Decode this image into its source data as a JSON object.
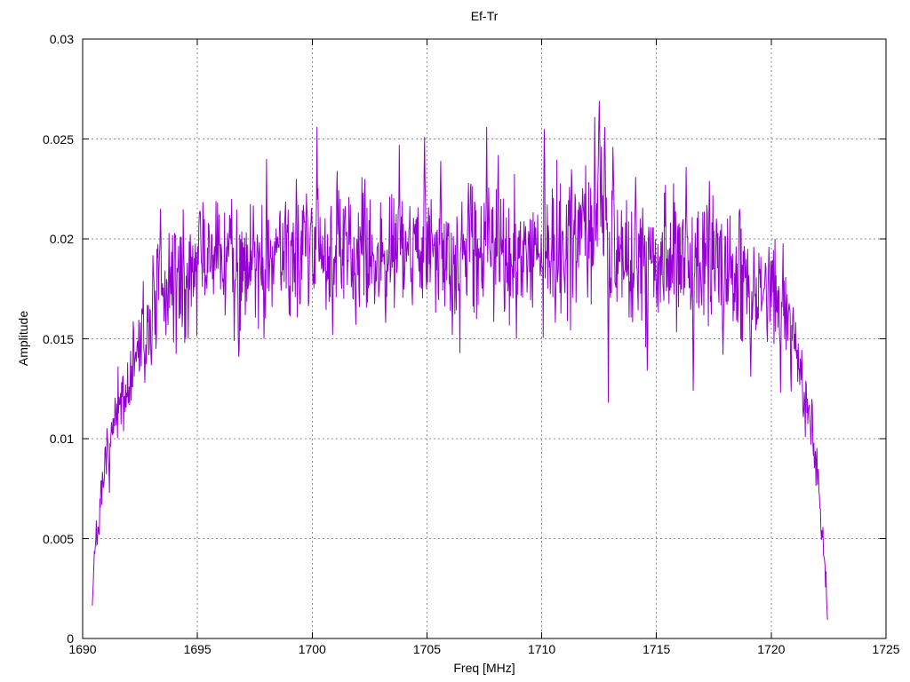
{
  "window": {
    "background": "#ffffff"
  },
  "chart_data": {
    "type": "line",
    "title": "Ef-Tr",
    "xlabel": "Freq [MHz]",
    "ylabel": "Amplitude",
    "xlim": [
      1690,
      1725
    ],
    "ylim": [
      0,
      0.03
    ],
    "xticks": [
      1690,
      1695,
      1700,
      1705,
      1710,
      1715,
      1720,
      1725
    ],
    "xtick_labels": [
      "1690",
      "1695",
      "1700",
      "1705",
      "1710",
      "1715",
      "1720",
      "1725"
    ],
    "yticks": [
      0,
      0.005,
      0.01,
      0.015,
      0.02,
      0.025,
      0.03
    ],
    "ytick_labels": [
      "0",
      "0.005",
      "0.01",
      "0.015",
      "0.02",
      "0.025",
      "0.03"
    ],
    "grid": true,
    "legend": "none",
    "series": [
      {
        "name": "Ef-Tr",
        "color": "#9400d3",
        "x_start": 1690.42,
        "x_end": 1722.46,
        "step": 0.022,
        "seed": 7,
        "noise_sigma": 0.00165,
        "envelope": [
          [
            1690.42,
            0.0018
          ],
          [
            1690.52,
            0.0046
          ],
          [
            1690.7,
            0.0056
          ],
          [
            1690.95,
            0.0082
          ],
          [
            1691.2,
            0.0098
          ],
          [
            1691.5,
            0.011
          ],
          [
            1691.8,
            0.012
          ],
          [
            1692.1,
            0.0131
          ],
          [
            1692.5,
            0.0148
          ],
          [
            1692.9,
            0.0158
          ],
          [
            1693.3,
            0.017
          ],
          [
            1693.8,
            0.0176
          ],
          [
            1694.3,
            0.0181
          ],
          [
            1695,
            0.0188
          ],
          [
            1696,
            0.0191
          ],
          [
            1697,
            0.0188
          ],
          [
            1698,
            0.0191
          ],
          [
            1699,
            0.0196
          ],
          [
            1700,
            0.0198
          ],
          [
            1701,
            0.0195
          ],
          [
            1702,
            0.0192
          ],
          [
            1703,
            0.0194
          ],
          [
            1704,
            0.0198
          ],
          [
            1705,
            0.0194
          ],
          [
            1706,
            0.019
          ],
          [
            1707,
            0.0196
          ],
          [
            1708,
            0.0197
          ],
          [
            1709,
            0.019
          ],
          [
            1710,
            0.0193
          ],
          [
            1711,
            0.0198
          ],
          [
            1712,
            0.0206
          ],
          [
            1712.5,
            0.0218
          ],
          [
            1713,
            0.0202
          ],
          [
            1713.8,
            0.0186
          ],
          [
            1714.5,
            0.0188
          ],
          [
            1715.5,
            0.0192
          ],
          [
            1716.5,
            0.019
          ],
          [
            1717.5,
            0.019
          ],
          [
            1718.5,
            0.018
          ],
          [
            1719.2,
            0.0172
          ],
          [
            1720,
            0.0173
          ],
          [
            1720.6,
            0.0166
          ],
          [
            1721,
            0.0146
          ],
          [
            1721.4,
            0.0127
          ],
          [
            1721.8,
            0.0104
          ],
          [
            1722.05,
            0.008
          ],
          [
            1722.25,
            0.005
          ],
          [
            1722.4,
            0.0025
          ],
          [
            1722.46,
            0.0012
          ]
        ],
        "spikes": [
          [
            1693.4,
            0.0215
          ],
          [
            1695.1,
            0.0214
          ],
          [
            1696.4,
            0.0212
          ],
          [
            1698.0,
            0.024
          ],
          [
            1699.3,
            0.023
          ],
          [
            1700.2,
            0.0256
          ],
          [
            1701.1,
            0.0234
          ],
          [
            1702.3,
            0.023
          ],
          [
            1703.8,
            0.0247
          ],
          [
            1704.9,
            0.0251
          ],
          [
            1705.6,
            0.0239
          ],
          [
            1706.8,
            0.0228
          ],
          [
            1707.6,
            0.0256
          ],
          [
            1708.1,
            0.0242
          ],
          [
            1710.1,
            0.0255
          ],
          [
            1711.2,
            0.0226
          ],
          [
            1712.3,
            0.0261
          ],
          [
            1712.5,
            0.0269
          ],
          [
            1712.75,
            0.0256
          ],
          [
            1713.1,
            0.0246
          ],
          [
            1714.1,
            0.0231
          ],
          [
            1715.4,
            0.0227
          ],
          [
            1716.3,
            0.0236
          ],
          [
            1717.3,
            0.0229
          ],
          [
            1718.6,
            0.0213
          ],
          [
            1719.9,
            0.0196
          ]
        ],
        "dips": [
          [
            1692.7,
            0.0128
          ],
          [
            1694.6,
            0.015
          ],
          [
            1696.8,
            0.0141
          ],
          [
            1697.9,
            0.015
          ],
          [
            1699.0,
            0.0162
          ],
          [
            1700.9,
            0.0152
          ],
          [
            1701.9,
            0.0157
          ],
          [
            1703.2,
            0.0158
          ],
          [
            1706.1,
            0.0152
          ],
          [
            1708.9,
            0.015
          ],
          [
            1710.6,
            0.0158
          ],
          [
            1712.9,
            0.0118
          ],
          [
            1714.6,
            0.0134
          ],
          [
            1716.6,
            0.0124
          ],
          [
            1717.9,
            0.0142
          ],
          [
            1719.1,
            0.0131
          ],
          [
            1720.4,
            0.0123
          ]
        ]
      }
    ]
  },
  "style": {
    "line_color": "#9400d3",
    "grid_color": "#8c8c8c",
    "axis_color": "#000000",
    "text_color": "#000000"
  }
}
